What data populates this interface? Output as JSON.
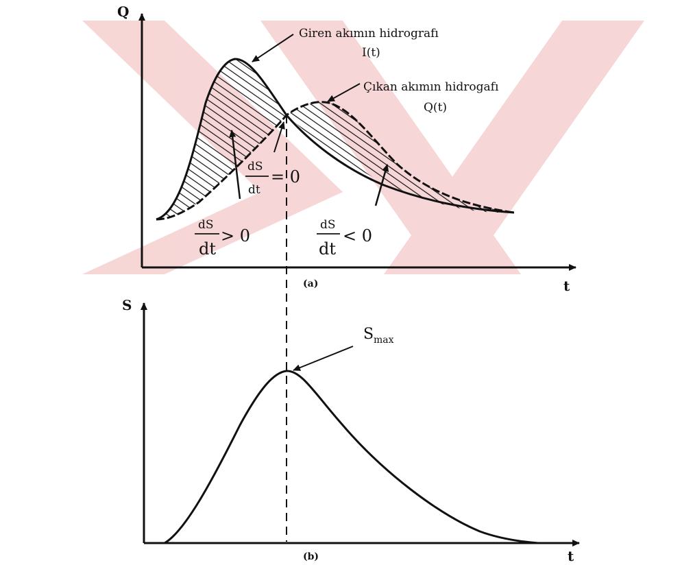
{
  "watermark": {
    "color": "#f4c9c9",
    "shape": "double-chevron"
  },
  "panel_a": {
    "y_axis_label": "Q",
    "x_axis_label": "t",
    "caption": "(a)",
    "inflow_label_line1": "Giren akımın hidrografı",
    "inflow_label_line2": "I(t)",
    "outflow_label_line1": "Çıkan akımın hidrogafı",
    "outflow_label_line2": "Q(t)",
    "eq_zero": {
      "num": "dS",
      "den": "dt",
      "rel": "= 0"
    },
    "eq_pos": {
      "num": "dS",
      "den": "dt",
      "rel": "> 0"
    },
    "eq_neg": {
      "num": "dS",
      "den": "dt",
      "rel": "< 0"
    }
  },
  "panel_b": {
    "y_axis_label": "S",
    "x_axis_label": "t",
    "caption": "(b)",
    "smax_base": "S",
    "smax_sub": "max"
  }
}
